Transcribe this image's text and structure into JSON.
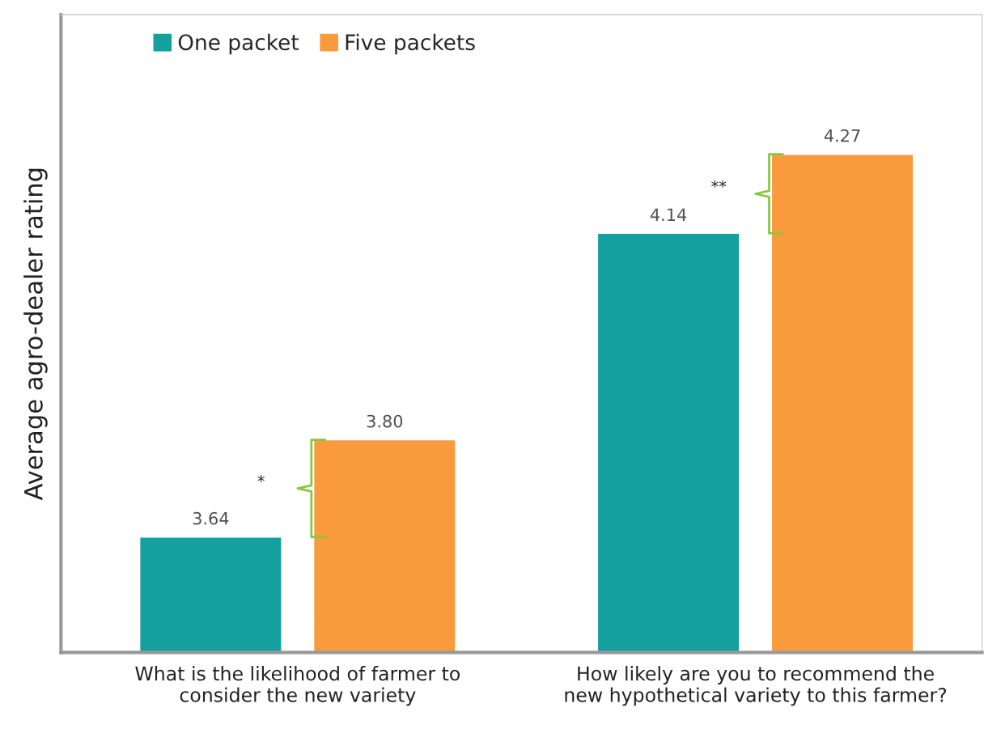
{
  "chart_data": {
    "type": "bar",
    "ylabel": "Average agro-dealer rating",
    "categories": [
      "What is the likelihood of farmer to\nconsider the new variety",
      "How likely are you to recommend the\nnew hypothetical variety to this farmer?"
    ],
    "series": [
      {
        "name": "One packet",
        "color": "#14a09e",
        "values": [
          3.64,
          4.14
        ],
        "value_labels": [
          "3.64",
          "4.14"
        ]
      },
      {
        "name": "Five packets",
        "color": "#f99b3c",
        "values": [
          3.8,
          4.27
        ],
        "value_labels": [
          "3.80",
          "4.27"
        ]
      }
    ],
    "ylim": [
      3.45,
      4.5
    ],
    "tick_labels": "x",
    "legend": "top left",
    "grid": false,
    "annotations": [
      "*",
      "**"
    ]
  }
}
